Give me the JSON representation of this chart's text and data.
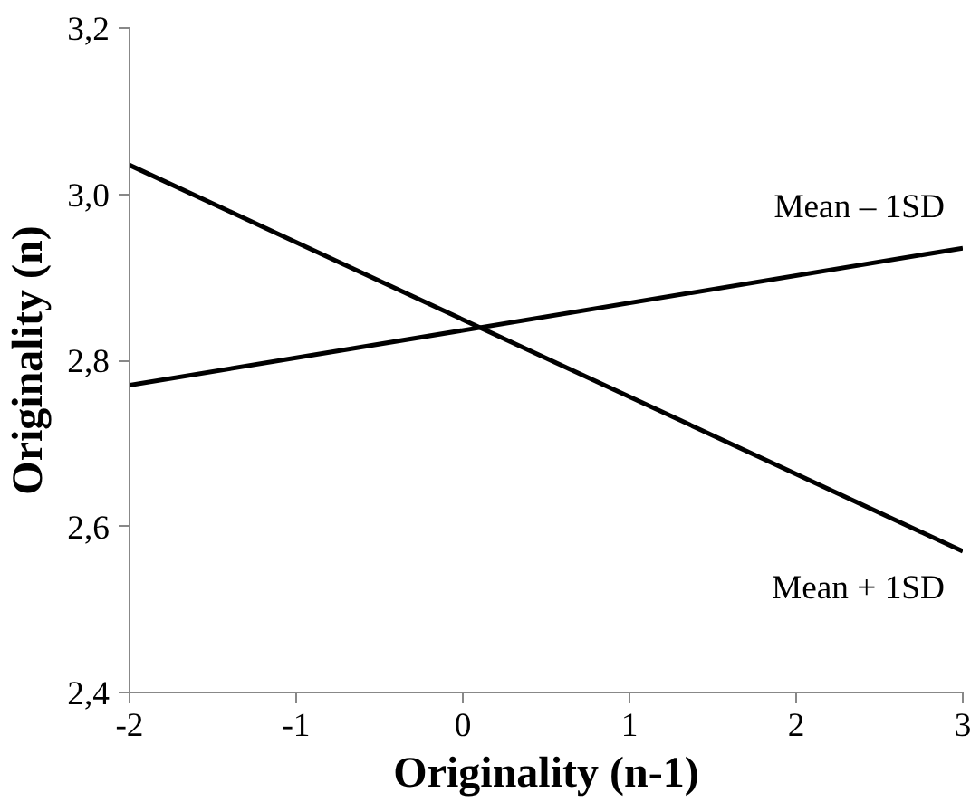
{
  "chart_data": {
    "type": "line",
    "xlabel": "Originality (n-1)",
    "ylabel": "Originality (n)",
    "x": [
      -2,
      3
    ],
    "series": [
      {
        "name": "Mean – 1SD",
        "color": "#000000",
        "values": [
          2.77,
          2.935
        ]
      },
      {
        "name": "Mean + 1SD",
        "color": "#000000",
        "values": [
          3.035,
          2.57
        ]
      }
    ],
    "xlim": [
      -2,
      3
    ],
    "xticks": [
      -2,
      -1,
      0,
      1,
      2,
      3
    ],
    "ylim": [
      2.4,
      3.2
    ],
    "yticks": [
      {
        "value": 2.4,
        "label": "2,4"
      },
      {
        "value": 2.6,
        "label": "2,6"
      },
      {
        "value": 2.8,
        "label": "2,8"
      },
      {
        "value": 3.0,
        "label": "3,0"
      },
      {
        "value": 3.2,
        "label": "3,2"
      }
    ],
    "grid": false,
    "marker": "none",
    "line_style": "solid"
  }
}
